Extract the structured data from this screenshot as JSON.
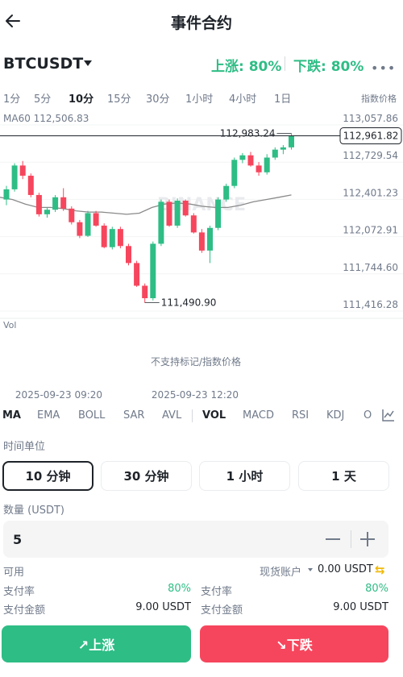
{
  "header": {
    "title": "事件合约"
  },
  "market": {
    "symbol": "BTCUSDT",
    "up_rate": "上涨: 80%",
    "down_rate": "下跌: 80%"
  },
  "timeframes": {
    "items": [
      "1分",
      "5分",
      "10分",
      "15分",
      "30分",
      "1小时",
      "4小时",
      "1日"
    ],
    "active": "10分",
    "index_price_label": "指数价格"
  },
  "chart": {
    "ma_label": "MA60 112,506.83",
    "price_axis": [
      "113,057.86",
      "112,729.54",
      "112,401.23",
      "112,072.91",
      "111,744.60",
      "111,416.28"
    ],
    "current_price": "112,961.82",
    "high_label": "112,983.24",
    "low_label": "111,490.90",
    "vol_label": "Vol",
    "no_support": "不支持标记/指数价格",
    "time_labels": [
      "2025-09-23 09:20",
      "2025-09-23 12:20"
    ],
    "watermark": "BINANCE"
  },
  "chart_data": {
    "type": "candlestick",
    "y_axis_ticks": [
      113057.86,
      112729.54,
      112401.23,
      112072.91,
      111744.6,
      111416.28
    ],
    "x_tick_labels": [
      "2025-09-23 09:20",
      "2025-09-23 12:20"
    ],
    "last_price": 112961.82,
    "high": 112983.24,
    "low": 111490.9,
    "ma60_last": 112506.83,
    "candles": [
      {
        "o": 112400,
        "h": 112520,
        "l": 112350,
        "c": 112490
      },
      {
        "o": 112490,
        "h": 112720,
        "l": 112470,
        "c": 112700
      },
      {
        "o": 112700,
        "h": 112740,
        "l": 112580,
        "c": 112610
      },
      {
        "o": 112610,
        "h": 112630,
        "l": 112420,
        "c": 112440
      },
      {
        "o": 112440,
        "h": 112460,
        "l": 112250,
        "c": 112270
      },
      {
        "o": 112270,
        "h": 112330,
        "l": 112240,
        "c": 112310
      },
      {
        "o": 112310,
        "h": 112440,
        "l": 112290,
        "c": 112420
      },
      {
        "o": 112420,
        "h": 112500,
        "l": 112300,
        "c": 112320
      },
      {
        "o": 112320,
        "h": 112340,
        "l": 112180,
        "c": 112200
      },
      {
        "o": 112200,
        "h": 112220,
        "l": 112060,
        "c": 112080
      },
      {
        "o": 112080,
        "h": 112300,
        "l": 112070,
        "c": 112280
      },
      {
        "o": 112280,
        "h": 112300,
        "l": 112160,
        "c": 112170
      },
      {
        "o": 112170,
        "h": 112190,
        "l": 111970,
        "c": 111980
      },
      {
        "o": 111980,
        "h": 112160,
        "l": 111960,
        "c": 112140
      },
      {
        "o": 112140,
        "h": 112160,
        "l": 111970,
        "c": 111990
      },
      {
        "o": 111990,
        "h": 112010,
        "l": 111820,
        "c": 111840
      },
      {
        "o": 111840,
        "h": 111860,
        "l": 111630,
        "c": 111640
      },
      {
        "o": 111640,
        "h": 111660,
        "l": 111490,
        "c": 111530
      },
      {
        "o": 111530,
        "h": 112030,
        "l": 111510,
        "c": 112010
      },
      {
        "o": 112010,
        "h": 112400,
        "l": 111990,
        "c": 112380
      },
      {
        "o": 112380,
        "h": 112400,
        "l": 112160,
        "c": 112170
      },
      {
        "o": 112170,
        "h": 112410,
        "l": 112150,
        "c": 112390
      },
      {
        "o": 112390,
        "h": 112400,
        "l": 112250,
        "c": 112260
      },
      {
        "o": 112260,
        "h": 112280,
        "l": 112100,
        "c": 112110
      },
      {
        "o": 112110,
        "h": 112140,
        "l": 111930,
        "c": 111950
      },
      {
        "o": 111950,
        "h": 112170,
        "l": 111840,
        "c": 112150
      },
      {
        "o": 112150,
        "h": 112420,
        "l": 112130,
        "c": 112400
      },
      {
        "o": 112400,
        "h": 112540,
        "l": 112380,
        "c": 112520
      },
      {
        "o": 112520,
        "h": 112770,
        "l": 112500,
        "c": 112750
      },
      {
        "o": 112750,
        "h": 112810,
        "l": 112720,
        "c": 112790
      },
      {
        "o": 112790,
        "h": 112820,
        "l": 112690,
        "c": 112700
      },
      {
        "o": 112700,
        "h": 112730,
        "l": 112610,
        "c": 112640
      },
      {
        "o": 112640,
        "h": 112800,
        "l": 112620,
        "c": 112770
      },
      {
        "o": 112770,
        "h": 112860,
        "l": 112750,
        "c": 112840
      },
      {
        "o": 112840,
        "h": 112880,
        "l": 112800,
        "c": 112860
      },
      {
        "o": 112860,
        "h": 112983.24,
        "l": 112840,
        "c": 112961.82
      }
    ],
    "ma60": [
      112420,
      112400,
      112360,
      112330,
      112330,
      112320,
      112300,
      112290,
      112290,
      112280,
      112270,
      112280,
      112330,
      112360,
      112370,
      112360,
      112340,
      112330,
      112330,
      112350,
      112380,
      112400,
      112420,
      112440
    ]
  },
  "indicators": {
    "items": [
      "MA",
      "EMA",
      "BOLL",
      "SAR",
      "AVL",
      "VOL",
      "MACD",
      "RSI",
      "KDJ",
      "O"
    ],
    "active": [
      "MA",
      "VOL"
    ]
  },
  "order": {
    "time_unit_label": "时间单位",
    "durations": [
      "10 分钟",
      "30 分钟",
      "1 小时",
      "1 天"
    ],
    "active_duration": "10 分钟",
    "quantity_label": "数量 (USDT)",
    "quantity_value": "5",
    "available_label": "可用",
    "account_label": "现货账户",
    "balance": "0.00 USDT",
    "left": {
      "pay_rate_label": "支付率",
      "pay_rate": "80%",
      "pay_amount_label": "支付金额",
      "pay_amount": "9.00 USDT"
    },
    "right": {
      "pay_rate_label": "支付率",
      "pay_rate": "80%",
      "pay_amount_label": "支付金额",
      "pay_amount": "9.00 USDT"
    },
    "buy_label": "↗上涨",
    "sell_label": "↘下跌"
  },
  "colors": {
    "up": "#2ebd85",
    "down": "#f6465d",
    "text": "#1e2329",
    "muted": "#707a8a"
  }
}
